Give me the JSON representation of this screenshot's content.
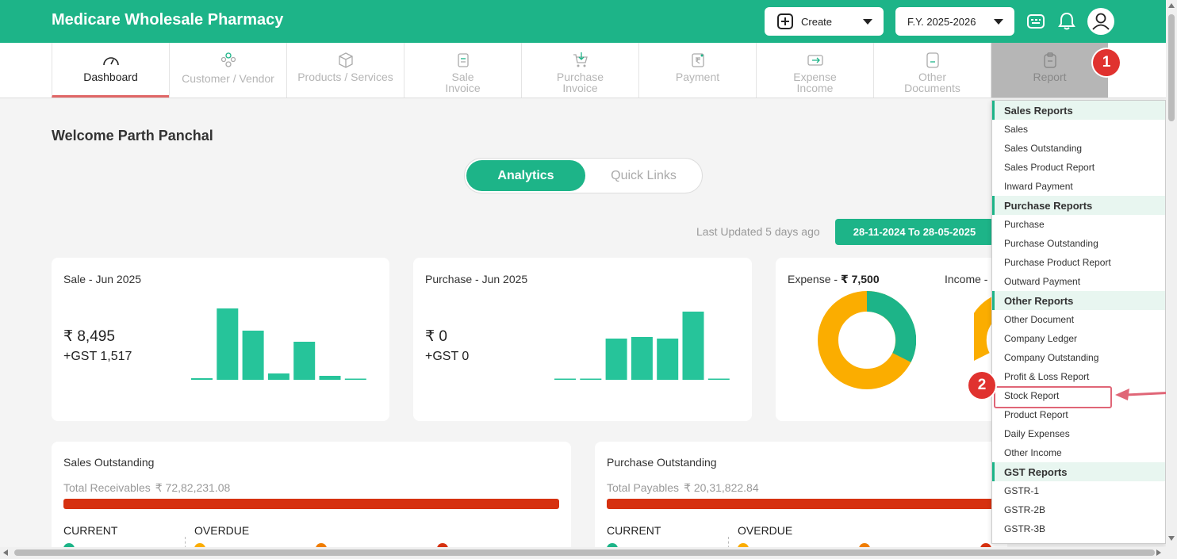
{
  "header": {
    "title": "Medicare Wholesale Pharmacy",
    "create_label": "Create",
    "fy_label": "F.Y. 2025-2026"
  },
  "nav": [
    {
      "label": "Dashboard",
      "icon": "speedometer-icon"
    },
    {
      "label": "Customer / Vendor",
      "icon": "users-icon"
    },
    {
      "label": "Products / Services",
      "icon": "box-icon"
    },
    {
      "label": "Sale",
      "label2": "Invoice",
      "icon": "invoice-icon"
    },
    {
      "label": "Purchase",
      "label2": "Invoice",
      "icon": "cart-icon"
    },
    {
      "label": "Payment",
      "icon": "rupee-note-icon"
    },
    {
      "label": "Expense",
      "label2": "Income",
      "icon": "money-icon"
    },
    {
      "label": "Other",
      "label2": "Documents",
      "icon": "document-icon"
    },
    {
      "label": "Report",
      "icon": "clipboard-icon"
    }
  ],
  "badges": {
    "one": "1",
    "two": "2"
  },
  "welcome": "Welcome Parth Panchal",
  "toggle": {
    "active": "Analytics",
    "inactive": "Quick Links"
  },
  "last_updated": "Last Updated 5 days ago",
  "date_range": "28-11-2024 To 28-05-2025",
  "sale_card": {
    "title": "Sale - Jun 2025",
    "amount": "₹ 8,495",
    "gst": "+GST 1,517",
    "bars": [
      2,
      90,
      62,
      8,
      48,
      5,
      1
    ]
  },
  "purchase_card": {
    "title": "Purchase - Jun 2025",
    "amount": "₹ 0",
    "gst": "+GST 0",
    "bars": [
      1,
      1,
      52,
      54,
      52,
      86,
      1
    ]
  },
  "expense_card": {
    "expense_label": "Expense - ",
    "expense_value": "₹ 7,500",
    "income_label": "Income -"
  },
  "sales_outstanding": {
    "title": "Sales Outstanding",
    "total_label": "Total Receivables",
    "total_value": "₹ 72,82,231.08",
    "current": "CURRENT",
    "overdue": "OVERDUE"
  },
  "purchase_outstanding": {
    "title": "Purchase Outstanding",
    "total_label": "Total Payables",
    "total_value": "₹ 20,31,822.84",
    "current": "CURRENT",
    "overdue": "OVERDUE"
  },
  "report_menu": [
    {
      "type": "head",
      "label": "Sales Reports"
    },
    {
      "type": "item",
      "label": "Sales"
    },
    {
      "type": "item",
      "label": "Sales Outstanding"
    },
    {
      "type": "item",
      "label": "Sales Product Report"
    },
    {
      "type": "item",
      "label": "Inward Payment"
    },
    {
      "type": "head",
      "label": "Purchase Reports"
    },
    {
      "type": "item",
      "label": "Purchase"
    },
    {
      "type": "item",
      "label": "Purchase Outstanding"
    },
    {
      "type": "item",
      "label": "Purchase Product Report"
    },
    {
      "type": "item",
      "label": "Outward Payment"
    },
    {
      "type": "head",
      "label": "Other Reports"
    },
    {
      "type": "item",
      "label": "Other Document"
    },
    {
      "type": "item",
      "label": "Company Ledger"
    },
    {
      "type": "item",
      "label": "Company Outstanding"
    },
    {
      "type": "item",
      "label": "Profit & Loss Report"
    },
    {
      "type": "item",
      "label": "Stock Report"
    },
    {
      "type": "item",
      "label": "Product Report"
    },
    {
      "type": "item",
      "label": "Daily Expenses"
    },
    {
      "type": "item",
      "label": "Other Income"
    },
    {
      "type": "head",
      "label": "GST Reports"
    },
    {
      "type": "item",
      "label": "GSTR-1"
    },
    {
      "type": "item",
      "label": "GSTR-2B"
    },
    {
      "type": "item",
      "label": "GSTR-3B"
    }
  ],
  "colors": {
    "brand": "#1db488",
    "badge": "#e0322f",
    "bar_red": "#d63110",
    "donut_teal": "#1db488",
    "donut_orange": "#fbad00"
  }
}
